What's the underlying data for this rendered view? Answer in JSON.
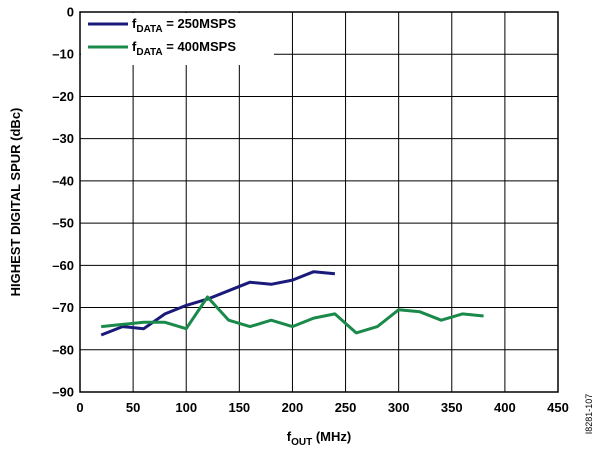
{
  "chart_data": {
    "type": "line",
    "xlabel": "f",
    "xlabel_sub": "OUT",
    "xlabel_unit": " (MHz)",
    "ylabel": "HIGHEST DIGITAL SPUR (dBc)",
    "xlim": [
      0,
      450
    ],
    "ylim": [
      -90,
      0
    ],
    "x_ticks": [
      0,
      50,
      100,
      150,
      200,
      250,
      300,
      350,
      400,
      450
    ],
    "y_ticks": [
      0,
      -10,
      -20,
      -30,
      -40,
      -50,
      -60,
      -70,
      -80,
      -90
    ],
    "x_tick_labels": [
      "0",
      "50",
      "100",
      "150",
      "200",
      "250",
      "300",
      "350",
      "400",
      "450"
    ],
    "y_tick_labels": [
      "0",
      "–10",
      "–20",
      "–30",
      "–40",
      "–50",
      "–60",
      "–70",
      "–80",
      "–90"
    ],
    "grid": true,
    "legend_position": "top-left",
    "series": [
      {
        "name_main": "f",
        "name_sub": "DATA",
        "name_rest": " = 250MSPS",
        "color": "#1a1a7a",
        "x": [
          20,
          40,
          60,
          80,
          100,
          120,
          140,
          160,
          180,
          200,
          220,
          240
        ],
        "y": [
          -76.5,
          -74.5,
          -75,
          -71.5,
          -69.5,
          -68,
          -66,
          -64,
          -64.5,
          -63.5,
          -61.5,
          -62
        ]
      },
      {
        "name_main": "f",
        "name_sub": "DATA",
        "name_rest": " = 400MSPS",
        "color": "#1a8a4a",
        "x": [
          20,
          40,
          60,
          80,
          100,
          120,
          140,
          160,
          180,
          200,
          220,
          240,
          260,
          280,
          300,
          320,
          340,
          360,
          380
        ],
        "y": [
          -74.5,
          -74,
          -73.5,
          -73.5,
          -75,
          -67.5,
          -73,
          -74.5,
          -73,
          -74.5,
          -72.5,
          -71.5,
          -76,
          -74.5,
          -70.5,
          -71,
          -73,
          -71.5,
          -72
        ]
      }
    ]
  },
  "figure_id": "I8281-107"
}
